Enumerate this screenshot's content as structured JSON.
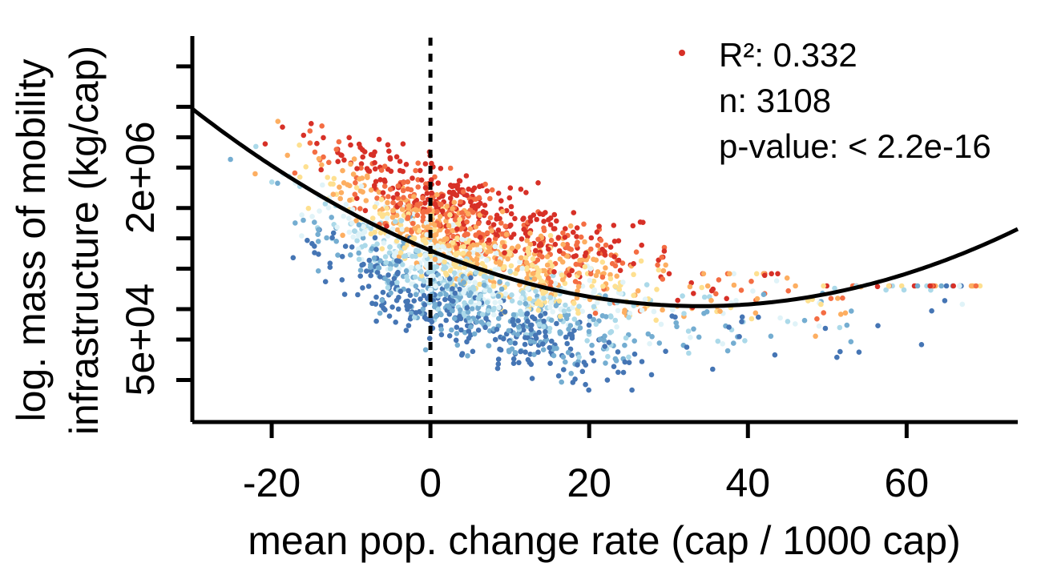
{
  "chart_data": {
    "type": "scatter",
    "title": "",
    "xlabel": "mean pop. change rate (cap / 1000 cap)",
    "ylabel_lines": [
      "log. mass of mobility",
      "infrastructure (kg/cap)"
    ],
    "xlim": [
      -30,
      74
    ],
    "ylim_log10": [
      3.9,
      7.7
    ],
    "x_ticks": [
      -20,
      0,
      20,
      40,
      60
    ],
    "x_tick_labels": [
      "-20",
      "0",
      "20",
      "40",
      "60"
    ],
    "y_tick_labels": [
      {
        "label": "5e+04",
        "value": 50000
      },
      {
        "label": "2e+06",
        "value": 2000000
      }
    ],
    "y_minor_ticks_log10": [
      4.3,
      4.7,
      5.0,
      5.4,
      5.7,
      6.0,
      6.4,
      6.7,
      7.0,
      7.4
    ],
    "reference_line": {
      "x": 0,
      "style": "dashed"
    },
    "fit_curve": {
      "type": "quadratic",
      "note_points": [
        {
          "x": -30,
          "y_log10": 6.98
        },
        {
          "x": 0,
          "y_log10": 5.89
        },
        {
          "x": 34,
          "y_log10": 5.03
        },
        {
          "x": 74,
          "y_log10": 5.74
        }
      ]
    },
    "legend": {
      "position": "top-right",
      "marker_color": "#d73027",
      "lines": [
        "R²: 0.332",
        "n: 3108",
        "p-value: < 2.2e-16"
      ]
    },
    "color_scale": [
      "#4575b4",
      "#74add1",
      "#abd9e9",
      "#e0f3f8",
      "#fee090",
      "#fdae61",
      "#f46d43",
      "#d73027"
    ],
    "n_points": 3108,
    "point_generation": "dense cloud estimated from figure: red points high mass, blue points low mass"
  }
}
